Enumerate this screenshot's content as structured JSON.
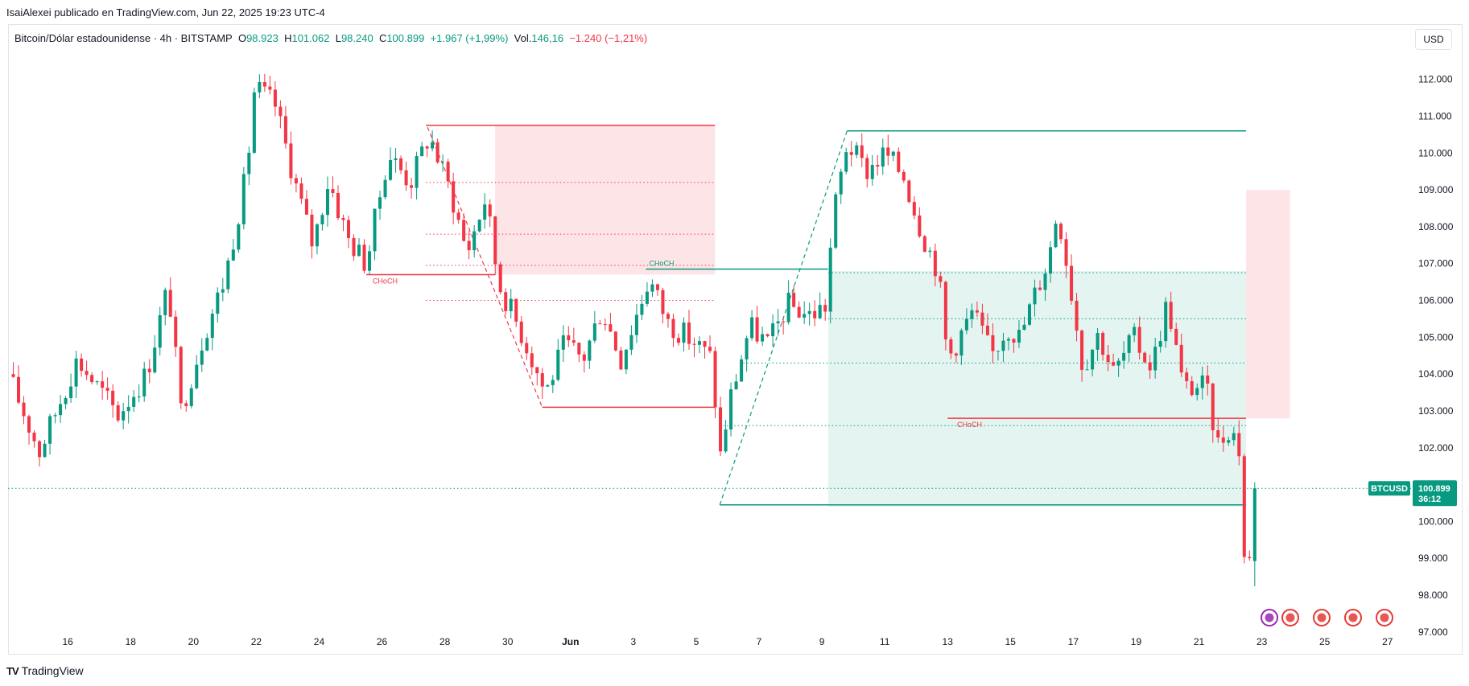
{
  "header": {
    "published": "IsaiAlexei publicado en TradingView.com, Jun 22, 2025 19:23 UTC-4"
  },
  "legend": {
    "symbol": "Bitcoin/Dólar estadounidense · 4h · BITSTAMP",
    "o_label": "O",
    "o_value": "98.923",
    "h_label": "H",
    "h_value": "101.062",
    "l_label": "L",
    "l_value": "98.240",
    "c_label": "C",
    "c_value": "100.899",
    "change": "+1.967 (+1,99%)",
    "vol_label": "Vol.",
    "vol_value": "146,16",
    "vol_change": "−1.240 (−1,21%)"
  },
  "currency": "USD",
  "brand": {
    "logo": "TV",
    "name": "TradingView"
  },
  "colors": {
    "up": "#089981",
    "down": "#f23645",
    "grid": "#e0e3eb"
  },
  "price_tag": {
    "symbol": "BTCUSD",
    "price": "100.899",
    "countdown": "36:12"
  },
  "chart_data": {
    "type": "candlestick",
    "ylim": [
      96800,
      112800
    ],
    "xlim": [
      14.1,
      58.8
    ],
    "yticks": [
      {
        "v": 97000,
        "label": "97.000"
      },
      {
        "v": 98000,
        "label": "98.000"
      },
      {
        "v": 99000,
        "label": "99.000"
      },
      {
        "v": 100000,
        "label": "100.000"
      },
      {
        "v": 101000,
        "label": "101.000"
      },
      {
        "v": 102000,
        "label": "102.000"
      },
      {
        "v": 103000,
        "label": "103.000"
      },
      {
        "v": 104000,
        "label": "104.000"
      },
      {
        "v": 105000,
        "label": "105.000"
      },
      {
        "v": 106000,
        "label": "106.000"
      },
      {
        "v": 107000,
        "label": "107.000"
      },
      {
        "v": 108000,
        "label": "108.000"
      },
      {
        "v": 109000,
        "label": "109.000"
      },
      {
        "v": 110000,
        "label": "110.000"
      },
      {
        "v": 111000,
        "label": "111.000"
      },
      {
        "v": 112000,
        "label": "112.000"
      }
    ],
    "xticks": [
      {
        "v": 16,
        "label": "16"
      },
      {
        "v": 18,
        "label": "18"
      },
      {
        "v": 20,
        "label": "20"
      },
      {
        "v": 22,
        "label": "22"
      },
      {
        "v": 24,
        "label": "24"
      },
      {
        "v": 26,
        "label": "26"
      },
      {
        "v": 28,
        "label": "28"
      },
      {
        "v": 30,
        "label": "30"
      },
      {
        "v": 32,
        "label": "Jun"
      },
      {
        "v": 34,
        "label": "3"
      },
      {
        "v": 36,
        "label": "5"
      },
      {
        "v": 38,
        "label": "7"
      },
      {
        "v": 40,
        "label": "9"
      },
      {
        "v": 42,
        "label": "11"
      },
      {
        "v": 44,
        "label": "13"
      },
      {
        "v": 46,
        "label": "15"
      },
      {
        "v": 48,
        "label": "17"
      },
      {
        "v": 50,
        "label": "19"
      },
      {
        "v": 52,
        "label": "21"
      },
      {
        "v": 54,
        "label": "23"
      },
      {
        "v": 56,
        "label": "25"
      },
      {
        "v": 58,
        "label": "27"
      }
    ],
    "last_price": 100899,
    "candle_step": 0.1667,
    "anchors": [
      {
        "t": 14.1,
        "p": 104000
      },
      {
        "t": 15.1,
        "p": 101900
      },
      {
        "t": 16.3,
        "p": 104400
      },
      {
        "t": 17.6,
        "p": 102900
      },
      {
        "t": 18.5,
        "p": 104000
      },
      {
        "t": 19.2,
        "p": 106400
      },
      {
        "t": 19.6,
        "p": 103000
      },
      {
        "t": 20.3,
        "p": 105000
      },
      {
        "t": 21.0,
        "p": 106600
      },
      {
        "t": 21.7,
        "p": 109500
      },
      {
        "t": 21.95,
        "p": 111800
      },
      {
        "t": 22.6,
        "p": 111300
      },
      {
        "t": 23.3,
        "p": 109000
      },
      {
        "t": 23.8,
        "p": 107500
      },
      {
        "t": 24.3,
        "p": 109300
      },
      {
        "t": 24.9,
        "p": 107700
      },
      {
        "t": 25.5,
        "p": 107000
      },
      {
        "t": 26.2,
        "p": 110000
      },
      {
        "t": 26.9,
        "p": 109200
      },
      {
        "t": 27.5,
        "p": 110500
      },
      {
        "t": 28.2,
        "p": 108900
      },
      {
        "t": 28.7,
        "p": 107300
      },
      {
        "t": 29.3,
        "p": 108800
      },
      {
        "t": 29.7,
        "p": 106500
      },
      {
        "t": 30.5,
        "p": 105000
      },
      {
        "t": 31.2,
        "p": 103500
      },
      {
        "t": 31.8,
        "p": 104800
      },
      {
        "t": 32.4,
        "p": 104400
      },
      {
        "t": 33.0,
        "p": 105800
      },
      {
        "t": 33.6,
        "p": 104400
      },
      {
        "t": 34.5,
        "p": 106600
      },
      {
        "t": 35.1,
        "p": 105400
      },
      {
        "t": 35.9,
        "p": 104900
      },
      {
        "t": 36.5,
        "p": 104400
      },
      {
        "t": 36.75,
        "p": 101700
      },
      {
        "t": 37.1,
        "p": 103400
      },
      {
        "t": 37.7,
        "p": 105300
      },
      {
        "t": 38.3,
        "p": 104800
      },
      {
        "t": 38.9,
        "p": 105900
      },
      {
        "t": 39.6,
        "p": 105600
      },
      {
        "t": 40.2,
        "p": 105900
      },
      {
        "t": 40.3,
        "p": 108000
      },
      {
        "t": 40.8,
        "p": 110300
      },
      {
        "t": 41.4,
        "p": 109500
      },
      {
        "t": 42.0,
        "p": 110000
      },
      {
        "t": 42.6,
        "p": 109400
      },
      {
        "t": 43.2,
        "p": 107800
      },
      {
        "t": 43.7,
        "p": 106800
      },
      {
        "t": 44.0,
        "p": 104400
      },
      {
        "t": 44.8,
        "p": 105700
      },
      {
        "t": 45.4,
        "p": 104500
      },
      {
        "t": 45.9,
        "p": 105300
      },
      {
        "t": 46.3,
        "p": 105000
      },
      {
        "t": 46.7,
        "p": 106000
      },
      {
        "t": 47.2,
        "p": 107100
      },
      {
        "t": 47.5,
        "p": 108500
      },
      {
        "t": 47.8,
        "p": 107000
      },
      {
        "t": 48.3,
        "p": 104200
      },
      {
        "t": 48.8,
        "p": 105100
      },
      {
        "t": 49.3,
        "p": 104000
      },
      {
        "t": 49.9,
        "p": 105000
      },
      {
        "t": 50.5,
        "p": 104200
      },
      {
        "t": 51.0,
        "p": 106000
      },
      {
        "t": 51.5,
        "p": 103600
      },
      {
        "t": 52.2,
        "p": 103700
      },
      {
        "t": 52.6,
        "p": 102100
      },
      {
        "t": 53.0,
        "p": 102600
      },
      {
        "t": 53.3,
        "p": 101900
      },
      {
        "t": 53.45,
        "p": 98900
      },
      {
        "t": 53.7,
        "p": 98923
      }
    ],
    "last_candle": {
      "o": 98923,
      "h": 101062,
      "l": 98240,
      "c": 100899
    },
    "zones": [
      {
        "kind": "supply",
        "t1": 29.6,
        "t2": 36.6,
        "p1": 106700,
        "p2": 110750
      },
      {
        "kind": "demand",
        "t1": 40.2,
        "t2": 53.5,
        "p1": 100400,
        "p2": 106800
      },
      {
        "kind": "supply",
        "t1": 53.5,
        "t2": 54.9,
        "p1": 102800,
        "p2": 109000
      }
    ],
    "levels": [
      {
        "t1": 27.4,
        "t2": 36.6,
        "p": 110750,
        "color": "down",
        "style": "solid"
      },
      {
        "t1": 27.4,
        "t2": 36.6,
        "p": 109200,
        "color": "down",
        "style": "dotted"
      },
      {
        "t1": 27.4,
        "t2": 36.6,
        "p": 107800,
        "color": "down",
        "style": "dotted"
      },
      {
        "t1": 27.4,
        "t2": 36.6,
        "p": 106950,
        "color": "down",
        "style": "dotted"
      },
      {
        "t1": 27.4,
        "t2": 36.6,
        "p": 106000,
        "color": "down",
        "style": "dotted"
      },
      {
        "t1": 25.5,
        "t2": 29.6,
        "p": 106700,
        "color": "down",
        "style": "solid"
      },
      {
        "t1": 31.1,
        "t2": 36.6,
        "p": 103100,
        "color": "down",
        "style": "solid"
      },
      {
        "t1": 36.75,
        "t2": 53.5,
        "p": 100450,
        "color": "up",
        "style": "solid"
      },
      {
        "t1": 36.75,
        "t2": 53.5,
        "p": 102600,
        "color": "up",
        "style": "dotted"
      },
      {
        "t1": 37.5,
        "t2": 53.5,
        "p": 104300,
        "color": "up",
        "style": "dotted"
      },
      {
        "t1": 40.2,
        "t2": 53.5,
        "p": 105500,
        "color": "up",
        "style": "dotted"
      },
      {
        "t1": 40.2,
        "t2": 53.5,
        "p": 106750,
        "color": "up",
        "style": "dotted"
      },
      {
        "t1": 34.4,
        "t2": 40.2,
        "p": 106850,
        "color": "up",
        "style": "solid"
      },
      {
        "t1": 40.8,
        "t2": 53.5,
        "p": 110600,
        "color": "up",
        "style": "solid"
      },
      {
        "t1": 44.0,
        "t2": 53.5,
        "p": 102800,
        "color": "down",
        "style": "solid"
      }
    ],
    "diagonals": [
      {
        "t1": 27.45,
        "p1": 110700,
        "t2": 31.1,
        "p2": 103100,
        "color": "down"
      },
      {
        "t1": 36.75,
        "p1": 100450,
        "t2": 40.8,
        "p2": 110600,
        "color": "up"
      }
    ],
    "annotations": [
      {
        "text": "CHoCH",
        "t": 26.1,
        "p": 106700,
        "color": "down",
        "pos": "below"
      },
      {
        "text": "CHoCH",
        "t": 34.9,
        "p": 106850,
        "color": "up",
        "pos": "above"
      },
      {
        "text": "CHoCH",
        "t": 44.7,
        "p": 102800,
        "color": "down",
        "pos": "below"
      }
    ]
  }
}
